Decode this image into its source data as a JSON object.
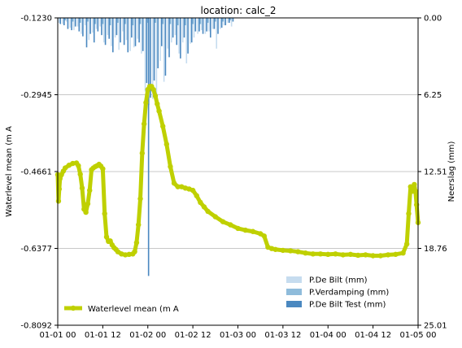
{
  "chart_data": {
    "type": "line",
    "title": "location: calc_2",
    "ylabel": "Waterlevel mean (m A",
    "ylabel_right": "Neerslag (mm)",
    "x_ticks": [
      "01-01 00",
      "01-01 12",
      "01-02 00",
      "01-02 12",
      "01-03 00",
      "01-03 12",
      "01-04 00",
      "01-04 12",
      "01-05 00"
    ],
    "y_ticks": [
      "-0.1230",
      "-0.2945",
      "-0.4661",
      "-0.6377",
      "-0.8092"
    ],
    "y_right_ticks": [
      "0.00",
      "6.25",
      "12.51",
      "18.76",
      "25.01"
    ],
    "ylim": [
      -0.8092,
      -0.123
    ],
    "ylim_right": [
      25.01,
      0.0
    ],
    "xlim_hours": [
      0,
      96
    ],
    "grid": "horizontal",
    "legend_placement": "lower-left and lower-right",
    "colors": {
      "waterlevel": "#bfd000",
      "p_de_bilt": "#c6dcef",
      "p_verdamping": "#8fbcdb",
      "p_de_bilt_test": "#4a88c0",
      "grid": "#c8c8c8"
    },
    "legend_left": [
      {
        "label": "Waterlevel mean (m A",
        "color": "#bfd000"
      }
    ],
    "legend_right": [
      {
        "label": "P.De Bilt (mm)",
        "color": "#c6dcef"
      },
      {
        "label": "P.Verdamping (mm)",
        "color": "#8fbcdb"
      },
      {
        "label": "P.De Bilt Test (mm)",
        "color": "#4a88c0"
      }
    ],
    "series": [
      {
        "name": "Waterlevel mean (m A",
        "axis": "left",
        "x_hours": [
          0,
          0.2,
          0.4,
          0.6,
          1,
          1.5,
          2,
          3,
          4,
          5,
          5.5,
          6,
          6.5,
          7,
          7.5,
          8,
          8.5,
          9,
          9.5,
          10,
          10.5,
          11,
          11.5,
          12,
          12.5,
          13,
          13.5,
          14,
          14.5,
          15,
          15.5,
          16,
          17,
          18,
          19,
          20,
          20.5,
          21,
          21.5,
          22,
          22.5,
          23,
          23.5,
          24,
          24.5,
          25,
          25.5,
          26,
          26.5,
          27,
          28,
          29,
          30,
          31,
          32,
          33,
          34,
          35,
          36,
          37,
          38,
          39,
          40,
          42,
          44,
          46,
          48,
          50,
          52,
          54,
          55,
          56,
          57,
          58,
          60,
          62,
          64,
          66,
          68,
          70,
          72,
          74,
          76,
          78,
          80,
          82,
          84,
          86,
          88,
          90,
          92,
          93,
          93.5,
          94,
          94.5,
          95,
          95.3,
          95.6,
          96
        ],
        "y": [
          -0.473,
          -0.532,
          -0.505,
          -0.482,
          -0.473,
          -0.465,
          -0.458,
          -0.452,
          -0.448,
          -0.447,
          -0.453,
          -0.472,
          -0.503,
          -0.55,
          -0.557,
          -0.538,
          -0.508,
          -0.462,
          -0.458,
          -0.455,
          -0.453,
          -0.45,
          -0.454,
          -0.46,
          -0.56,
          -0.612,
          -0.622,
          -0.621,
          -0.63,
          -0.636,
          -0.64,
          -0.645,
          -0.65,
          -0.652,
          -0.651,
          -0.65,
          -0.645,
          -0.625,
          -0.585,
          -0.527,
          -0.425,
          -0.36,
          -0.312,
          -0.283,
          -0.276,
          -0.276,
          -0.283,
          -0.297,
          -0.315,
          -0.331,
          -0.365,
          -0.405,
          -0.455,
          -0.492,
          -0.5,
          -0.5,
          -0.503,
          -0.505,
          -0.508,
          -0.52,
          -0.535,
          -0.545,
          -0.555,
          -0.567,
          -0.578,
          -0.585,
          -0.593,
          -0.597,
          -0.6,
          -0.605,
          -0.61,
          -0.635,
          -0.638,
          -0.64,
          -0.642,
          -0.643,
          -0.645,
          -0.648,
          -0.65,
          -0.65,
          -0.651,
          -0.65,
          -0.652,
          -0.651,
          -0.653,
          -0.652,
          -0.654,
          -0.654,
          -0.652,
          -0.651,
          -0.648,
          -0.628,
          -0.56,
          -0.5,
          -0.51,
          -0.495,
          -0.51,
          -0.54,
          -0.58
        ]
      },
      {
        "name": "P.De Bilt (mm)",
        "axis": "right",
        "type": "bar",
        "x_hours": [
          0.5,
          1.5,
          2.5,
          3.5,
          4.5,
          5.5,
          6.5,
          7.5,
          8.5,
          9.5,
          10.5,
          11.5,
          12.5,
          13.5,
          14.5,
          15.5,
          16.5,
          17.5,
          18.5,
          19.5,
          20.5,
          21.5,
          22.5,
          23.5,
          24.5,
          25.5,
          26.5,
          27.5,
          28.5,
          29.5,
          30.5,
          31.5,
          32.5,
          33.5,
          34.5,
          35.5,
          36.5,
          37.5,
          38.5,
          39.5,
          40.5,
          41.5,
          42.5,
          43.5,
          44.5,
          45.5,
          46.5
        ],
        "values": [
          0.4,
          0.5,
          0.3,
          0.8,
          1.0,
          0.7,
          1.3,
          0.6,
          1.8,
          1.2,
          0.9,
          0.7,
          2.0,
          1.4,
          2.3,
          1.6,
          2.6,
          1.1,
          1.8,
          2.7,
          2.4,
          1.7,
          2.9,
          6.0,
          7.1,
          6.6,
          6.4,
          3.5,
          5.2,
          2.5,
          2.0,
          1.4,
          2.9,
          2.0,
          3.7,
          2.1,
          1.6,
          1.3,
          1.0,
          1.3,
          1.1,
          0.9,
          2.5,
          0.9,
          0.6,
          0.4,
          0.7
        ]
      },
      {
        "name": "P.Verdamping (mm)",
        "axis": "right",
        "type": "bar",
        "x_hours": [
          2,
          4,
          6,
          8,
          10,
          12,
          14,
          16,
          18,
          20,
          22,
          24,
          26,
          28,
          30,
          32,
          34,
          36,
          38,
          40,
          42,
          44,
          46
        ],
        "values": [
          0.2,
          0.3,
          0.4,
          0.3,
          0.5,
          0.5,
          0.6,
          0.4,
          0.5,
          0.6,
          0.5,
          0.4,
          0.4,
          0.5,
          0.5,
          0.6,
          0.6,
          0.5,
          0.5,
          0.4,
          0.3,
          0.3,
          0.2
        ]
      },
      {
        "name": "P.De Bilt Test (mm)",
        "axis": "right",
        "type": "bar",
        "x_hours": [
          0.5,
          1.5,
          2.5,
          3.5,
          4.5,
          5.5,
          6.5,
          7.5,
          8.5,
          9.5,
          10.5,
          11.5,
          12.5,
          13.5,
          14.5,
          15.5,
          16.5,
          17.5,
          18.5,
          19.5,
          20.5,
          21.5,
          22.5,
          23.5,
          24,
          24.5,
          25.5,
          26.5,
          27.5,
          28.5,
          29.5,
          30.5,
          31.5,
          32.5,
          33.5,
          34.5,
          35.5,
          36.5,
          37.5,
          38.5,
          39.5,
          40.5,
          41.5,
          42.5,
          43.5,
          44.5,
          45.5,
          46.5
        ],
        "values": [
          0.5,
          0.6,
          0.9,
          1.0,
          0.7,
          1.1,
          1.5,
          2.4,
          1.3,
          2.0,
          1.1,
          1.4,
          2.2,
          1.7,
          2.8,
          1.4,
          2.0,
          2.2,
          2.8,
          1.6,
          2.3,
          2.0,
          2.7,
          5.3,
          21.0,
          6.5,
          5.1,
          4.1,
          2.3,
          4.7,
          3.2,
          1.6,
          2.2,
          3.3,
          1.6,
          2.9,
          2.0,
          1.1,
          1.1,
          1.3,
          1.1,
          1.6,
          0.9,
          1.3,
          0.8,
          0.6,
          0.4,
          0.3
        ]
      }
    ]
  }
}
